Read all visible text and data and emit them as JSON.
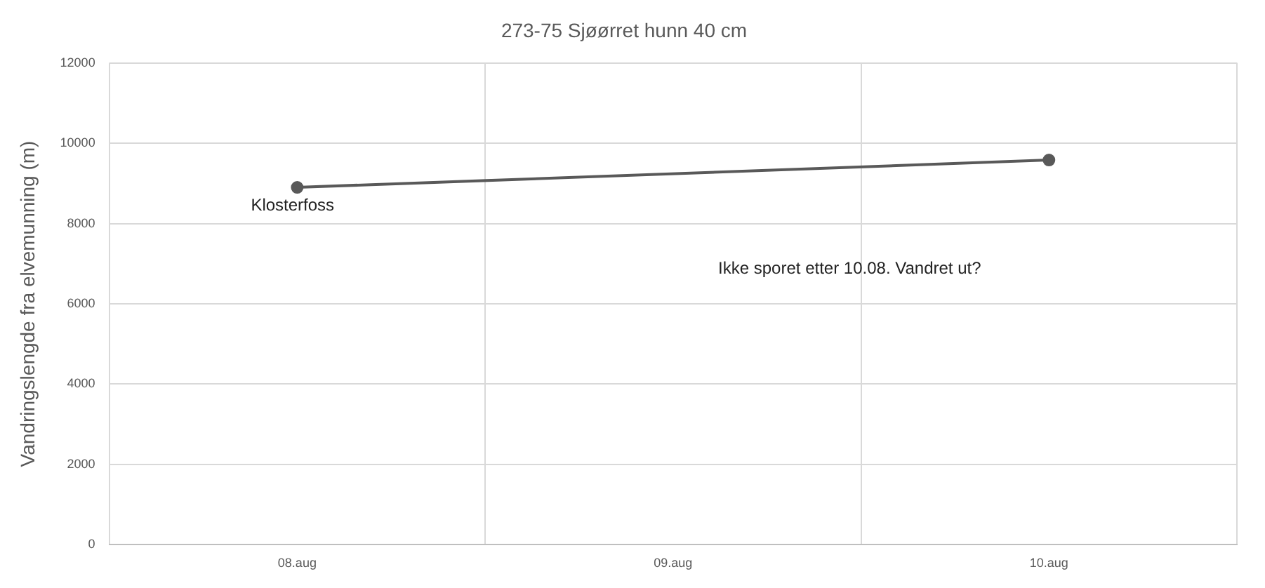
{
  "chart_data": {
    "type": "line",
    "title": "273-75 Sjøørret hunn 40 cm",
    "ylabel": "Vandringslengde fra elvemunning (m)",
    "categories": [
      "08.aug",
      "09.aug",
      "10.aug"
    ],
    "series": [
      {
        "color": "#595959",
        "values": [
          8900,
          null,
          9580
        ]
      }
    ],
    "ylim": [
      0,
      12000
    ],
    "yticks": [
      0,
      2000,
      4000,
      6000,
      8000,
      10000,
      12000
    ],
    "grid": true,
    "marker": "circle",
    "line_style": "solid",
    "legend": false,
    "annotations": [
      {
        "text": "Klosterfoss",
        "x": "08.aug",
        "y": 8900
      },
      "Ikke sporet etter 10.08. Vandret ut?"
    ]
  }
}
